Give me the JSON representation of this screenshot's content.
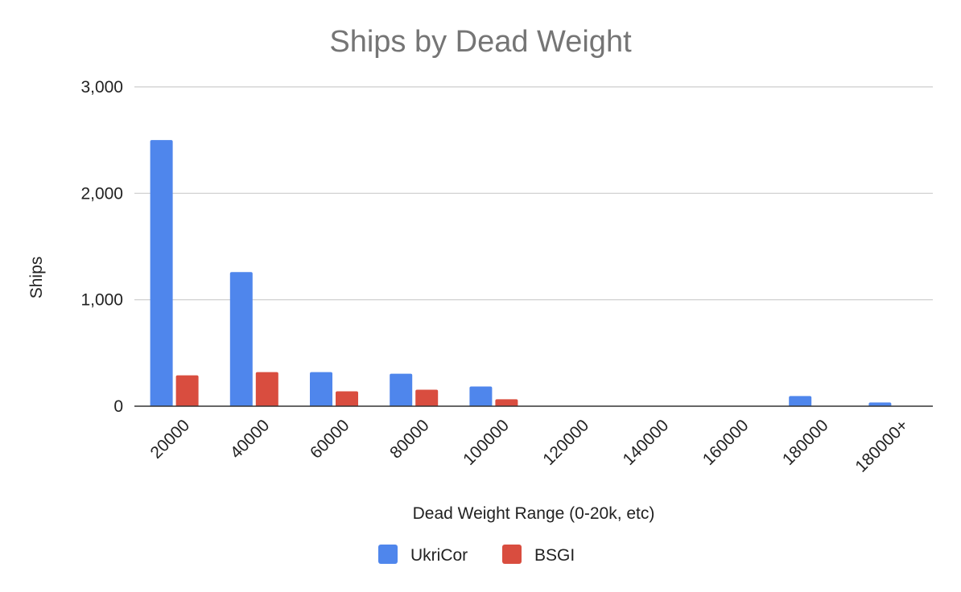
{
  "chart_data": {
    "type": "bar",
    "title": "Ships by Dead Weight",
    "xlabel": "Dead Weight Range (0-20k, etc)",
    "ylabel": "Ships",
    "categories": [
      "20000",
      "40000",
      "60000",
      "80000",
      "100000",
      "120000",
      "140000",
      "160000",
      "180000",
      "180000+"
    ],
    "series": [
      {
        "name": "UkriCor",
        "color": "#4f86ec",
        "values": [
          2500,
          1260,
          320,
          305,
          185,
          0,
          0,
          0,
          95,
          35
        ]
      },
      {
        "name": "BSGI",
        "color": "#d94d3f",
        "values": [
          290,
          320,
          140,
          155,
          65,
          0,
          0,
          0,
          0,
          0
        ]
      }
    ],
    "ylim": [
      0,
      3000
    ],
    "yticks": [
      0,
      1000,
      2000,
      3000
    ],
    "ytick_labels": [
      "0",
      "1,000",
      "2,000",
      "3,000"
    ],
    "grid": true,
    "legend_position": "bottom"
  }
}
